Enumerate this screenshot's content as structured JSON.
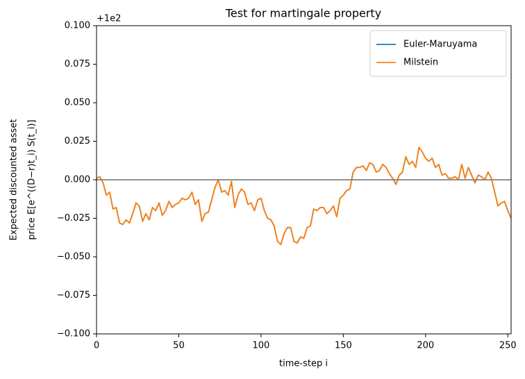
{
  "chart_data": {
    "type": "line",
    "title": "Test for martingale property",
    "xlabel": "time-step i",
    "ylabel": [
      "Expected discounted asset",
      "price  E[e^((D−r)t_i) S(t_i)]"
    ],
    "y_offset_text": "+1e2",
    "xlim": [
      0,
      252
    ],
    "xticks": [
      0,
      50,
      100,
      150,
      200,
      250
    ],
    "ylim": [
      -0.1,
      0.1
    ],
    "yticks": [
      {
        "value": -0.1,
        "label": "−0.100"
      },
      {
        "value": -0.075,
        "label": "−0.075"
      },
      {
        "value": -0.05,
        "label": "−0.050"
      },
      {
        "value": -0.025,
        "label": "−0.025"
      },
      {
        "value": 0,
        "label": "0.000"
      },
      {
        "value": 0.025,
        "label": "0.025"
      },
      {
        "value": 0.05,
        "label": "0.050"
      },
      {
        "value": 0.075,
        "label": "0.075"
      },
      {
        "value": 0.1,
        "label": "0.100"
      }
    ],
    "hline": {
      "value": 0,
      "color": "#808080"
    },
    "legend": "upper right",
    "x": [
      0,
      2,
      4,
      6,
      8,
      10,
      12,
      14,
      16,
      18,
      20,
      22,
      24,
      26,
      28,
      30,
      32,
      34,
      36,
      38,
      40,
      42,
      44,
      46,
      48,
      50,
      52,
      54,
      56,
      58,
      60,
      62,
      64,
      66,
      68,
      70,
      72,
      74,
      76,
      78,
      80,
      82,
      84,
      86,
      88,
      90,
      92,
      94,
      96,
      98,
      100,
      102,
      104,
      106,
      108,
      110,
      112,
      114,
      116,
      118,
      120,
      122,
      124,
      126,
      128,
      130,
      132,
      134,
      136,
      138,
      140,
      142,
      144,
      146,
      148,
      150,
      152,
      154,
      156,
      158,
      160,
      162,
      164,
      166,
      168,
      170,
      172,
      174,
      176,
      178,
      180,
      182,
      184,
      186,
      188,
      190,
      192,
      194,
      196,
      198,
      200,
      202,
      204,
      206,
      208,
      210,
      212,
      214,
      216,
      218,
      220,
      222,
      224,
      226,
      228,
      230,
      232,
      234,
      236,
      238,
      240,
      242,
      244,
      246,
      248,
      250,
      252
    ],
    "series": [
      {
        "name": "Euler-Maruyama",
        "color": "#1f77b4",
        "values": [
          0.001,
          0.002,
          -0.002,
          -0.01,
          -0.008,
          -0.019,
          -0.018,
          -0.028,
          -0.029,
          -0.026,
          -0.028,
          -0.022,
          -0.015,
          -0.017,
          -0.027,
          -0.022,
          -0.026,
          -0.018,
          -0.02,
          -0.015,
          -0.023,
          -0.02,
          -0.014,
          -0.018,
          -0.016,
          -0.015,
          -0.012,
          -0.013,
          -0.012,
          -0.008,
          -0.016,
          -0.013,
          -0.027,
          -0.022,
          -0.021,
          -0.013,
          -0.005,
          0.0,
          -0.008,
          -0.007,
          -0.01,
          -0.001,
          -0.018,
          -0.01,
          -0.006,
          -0.008,
          -0.016,
          -0.015,
          -0.02,
          -0.013,
          -0.012,
          -0.02,
          -0.025,
          -0.026,
          -0.03,
          -0.04,
          -0.042,
          -0.035,
          -0.031,
          -0.031,
          -0.04,
          -0.041,
          -0.037,
          -0.038,
          -0.031,
          -0.03,
          -0.019,
          -0.02,
          -0.018,
          -0.018,
          -0.022,
          -0.02,
          -0.017,
          -0.024,
          -0.012,
          -0.01,
          -0.007,
          -0.006,
          0.005,
          0.008,
          0.008,
          0.009,
          0.006,
          0.011,
          0.01,
          0.005,
          0.006,
          0.01,
          0.008,
          0.004,
          0.001,
          -0.003,
          0.003,
          0.005,
          0.015,
          0.01,
          0.012,
          0.008,
          0.021,
          0.018,
          0.014,
          0.012,
          0.014,
          0.008,
          0.01,
          0.003,
          0.004,
          0.001,
          0.001,
          0.002,
          0.0,
          0.01,
          0.001,
          0.008,
          0.003,
          -0.002,
          0.003,
          0.002,
          0.0,
          0.005,
          0.001,
          -0.008,
          -0.017,
          -0.015,
          -0.014,
          -0.02,
          -0.025
        ]
      },
      {
        "name": "Milstein",
        "color": "#ff7f0e",
        "values": [
          0.001,
          0.002,
          -0.002,
          -0.01,
          -0.008,
          -0.019,
          -0.018,
          -0.028,
          -0.029,
          -0.026,
          -0.028,
          -0.022,
          -0.015,
          -0.017,
          -0.027,
          -0.022,
          -0.026,
          -0.018,
          -0.02,
          -0.015,
          -0.023,
          -0.02,
          -0.014,
          -0.018,
          -0.016,
          -0.015,
          -0.012,
          -0.013,
          -0.012,
          -0.008,
          -0.016,
          -0.013,
          -0.027,
          -0.022,
          -0.021,
          -0.013,
          -0.005,
          0.0,
          -0.008,
          -0.007,
          -0.01,
          -0.001,
          -0.018,
          -0.01,
          -0.006,
          -0.008,
          -0.016,
          -0.015,
          -0.02,
          -0.013,
          -0.012,
          -0.02,
          -0.025,
          -0.026,
          -0.03,
          -0.04,
          -0.042,
          -0.035,
          -0.031,
          -0.031,
          -0.04,
          -0.041,
          -0.037,
          -0.038,
          -0.031,
          -0.03,
          -0.019,
          -0.02,
          -0.018,
          -0.018,
          -0.022,
          -0.02,
          -0.017,
          -0.024,
          -0.012,
          -0.01,
          -0.007,
          -0.006,
          0.005,
          0.008,
          0.008,
          0.009,
          0.006,
          0.011,
          0.01,
          0.005,
          0.006,
          0.01,
          0.008,
          0.004,
          0.001,
          -0.003,
          0.003,
          0.005,
          0.015,
          0.01,
          0.012,
          0.008,
          0.021,
          0.018,
          0.014,
          0.012,
          0.014,
          0.008,
          0.01,
          0.003,
          0.004,
          0.001,
          0.001,
          0.002,
          0.0,
          0.01,
          0.001,
          0.008,
          0.003,
          -0.002,
          0.003,
          0.002,
          0.0,
          0.005,
          0.001,
          -0.008,
          -0.017,
          -0.015,
          -0.014,
          -0.02,
          -0.025
        ]
      }
    ]
  }
}
